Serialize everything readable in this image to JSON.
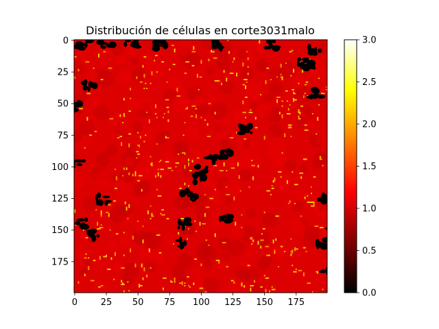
{
  "chart_data": {
    "type": "heatmap",
    "title": "Distribución de células en corte3031malo",
    "xlabel": "",
    "ylabel": "",
    "grid": false,
    "colormap": "hot",
    "color_stops": [
      "#000000",
      "#800000",
      "#ff0000",
      "#ff8000",
      "#ffff00",
      "#ffffff"
    ],
    "background_value": 1.0,
    "x_range": [
      0,
      199
    ],
    "y_range": [
      0,
      199
    ],
    "y_inverted": true,
    "xticks": [
      0,
      25,
      50,
      75,
      100,
      125,
      150,
      175
    ],
    "yticks": [
      0,
      25,
      50,
      75,
      100,
      125,
      150,
      175
    ],
    "colorbar": {
      "range": [
        0.0,
        3.0
      ],
      "ticks": [
        "0.0",
        "0.5",
        "1.0",
        "1.5",
        "2.0",
        "2.5",
        "3.0"
      ]
    },
    "clusters": {
      "value_0": [
        [
          7,
          3
        ],
        [
          25,
          3
        ],
        [
          45,
          3
        ],
        [
          67,
          3
        ],
        [
          115,
          3
        ],
        [
          155,
          3
        ],
        [
          190,
          7
        ],
        [
          12,
          35
        ],
        [
          190,
          42
        ],
        [
          3,
          52
        ],
        [
          135,
          70
        ],
        [
          120,
          90
        ],
        [
          108,
          95
        ],
        [
          3,
          98
        ],
        [
          100,
          103
        ],
        [
          98,
          110
        ],
        [
          22,
          125
        ],
        [
          90,
          122
        ],
        [
          195,
          125
        ],
        [
          120,
          140
        ],
        [
          5,
          145
        ],
        [
          85,
          145
        ],
        [
          205,
          150
        ],
        [
          15,
          153
        ],
        [
          85,
          160
        ],
        [
          195,
          160
        ],
        [
          200,
          180
        ],
        [
          178,
          18
        ],
        [
          188,
          20
        ]
      ],
      "value_2": [
        [
          55,
          45
        ],
        [
          75,
          55
        ],
        [
          95,
          65
        ],
        [
          140,
          50
        ],
        [
          160,
          40
        ],
        [
          185,
          35
        ],
        [
          30,
          70
        ],
        [
          60,
          85
        ],
        [
          85,
          90
        ],
        [
          170,
          65
        ],
        [
          45,
          110
        ],
        [
          70,
          105
        ],
        [
          110,
          115
        ],
        [
          150,
          105
        ],
        [
          175,
          120
        ],
        [
          30,
          140
        ],
        [
          60,
          135
        ],
        [
          95,
          150
        ],
        [
          140,
          155
        ],
        [
          165,
          170
        ],
        [
          20,
          180
        ],
        [
          50,
          190
        ],
        [
          80,
          195
        ],
        [
          120,
          185
        ],
        [
          150,
          190
        ],
        [
          185,
          195
        ],
        [
          10,
          20
        ],
        [
          130,
          25
        ],
        [
          100,
          20
        ],
        [
          65,
          15
        ]
      ]
    }
  }
}
